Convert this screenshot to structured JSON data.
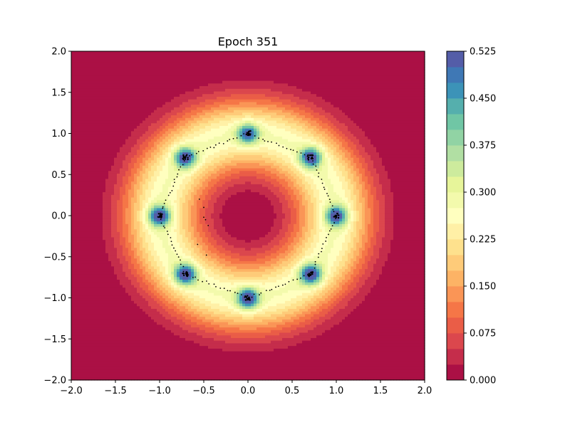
{
  "chart_data": {
    "type": "heatmap",
    "subtype": "filled-contour",
    "title": "Epoch 351",
    "xlabel": "",
    "ylabel": "",
    "xlim": [
      -2.0,
      2.0
    ],
    "ylim": [
      -2.0,
      2.0
    ],
    "x_ticks": [
      -2.0,
      -1.5,
      -1.0,
      -0.5,
      0.0,
      0.5,
      1.0,
      1.5,
      2.0
    ],
    "y_ticks": [
      -2.0,
      -1.5,
      -1.0,
      -0.5,
      0.0,
      0.5,
      1.0,
      1.5,
      2.0
    ],
    "x_tick_labels": [
      "−2.0",
      "−1.5",
      "−1.0",
      "−0.5",
      "0.0",
      "0.5",
      "1.0",
      "1.5",
      "2.0"
    ],
    "y_tick_labels": [
      "−2.0",
      "−1.5",
      "−1.0",
      "−0.5",
      "0.0",
      "0.5",
      "1.0",
      "1.5",
      "2.0"
    ],
    "grid": false,
    "colormap": "Spectral",
    "colorbar": {
      "range": [
        0.0,
        0.525
      ],
      "levels": 21,
      "ticks": [
        0.0,
        0.075,
        0.15,
        0.225,
        0.3,
        0.375,
        0.45,
        0.525
      ],
      "tick_labels": [
        "0.000",
        "0.075",
        "0.150",
        "0.225",
        "0.300",
        "0.375",
        "0.450",
        "0.525"
      ]
    },
    "modes": [
      {
        "x": 1.0,
        "y": 0.0,
        "peak": 0.5
      },
      {
        "x": 0.71,
        "y": 0.71,
        "peak": 0.5
      },
      {
        "x": 0.0,
        "y": 1.0,
        "peak": 0.47
      },
      {
        "x": -0.71,
        "y": 0.71,
        "peak": 0.5
      },
      {
        "x": -1.0,
        "y": 0.0,
        "peak": 0.52
      },
      {
        "x": -0.71,
        "y": -0.71,
        "peak": 0.52
      },
      {
        "x": 0.0,
        "y": -1.0,
        "peak": 0.52
      },
      {
        "x": 0.71,
        "y": -0.71,
        "peak": 0.52
      }
    ],
    "samples": {
      "marker": "black-dots",
      "ring_radius": 1.0,
      "points_per_edge": 18,
      "points_per_cluster": 14,
      "stray_points": [
        [
          -0.55,
          0.2
        ],
        [
          -0.5,
          0.1
        ],
        [
          -0.48,
          -0.05
        ],
        [
          -0.45,
          -0.12
        ],
        [
          -0.57,
          -0.35
        ],
        [
          -0.47,
          -0.48
        ],
        [
          -0.5,
          -0.02
        ]
      ]
    }
  }
}
